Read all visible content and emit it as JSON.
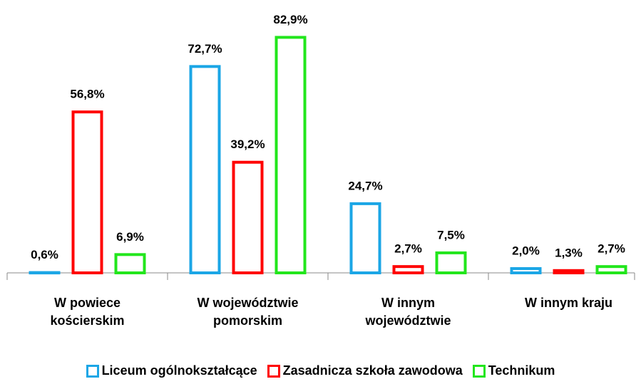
{
  "chart_data": {
    "type": "bar",
    "categories": [
      "W powiece kościerskim",
      "W województwie pomorskim",
      "W innym województwie",
      "W innym kraju"
    ],
    "series": [
      {
        "name": "Liceum ogólnokształcące",
        "color": "#1ba6e6",
        "values": [
          0.6,
          72.7,
          24.7,
          2.0
        ],
        "value_labels": [
          "0,6%",
          "72,7%",
          "24,7%",
          "2,0%"
        ]
      },
      {
        "name": "Zasadnicza szkoła zawodowa",
        "color": "#ff0000",
        "values": [
          56.8,
          39.2,
          2.7,
          1.3
        ],
        "value_labels": [
          "56,8%",
          "39,2%",
          "2,7%",
          "1,3%"
        ]
      },
      {
        "name": "Technikum",
        "color": "#22e61c",
        "values": [
          6.9,
          82.9,
          7.5,
          2.7
        ],
        "value_labels": [
          "6,9%",
          "82,9%",
          "7,5%",
          "2,7%"
        ]
      }
    ],
    "ylim": [
      0,
      85
    ],
    "legend": "bottom"
  }
}
